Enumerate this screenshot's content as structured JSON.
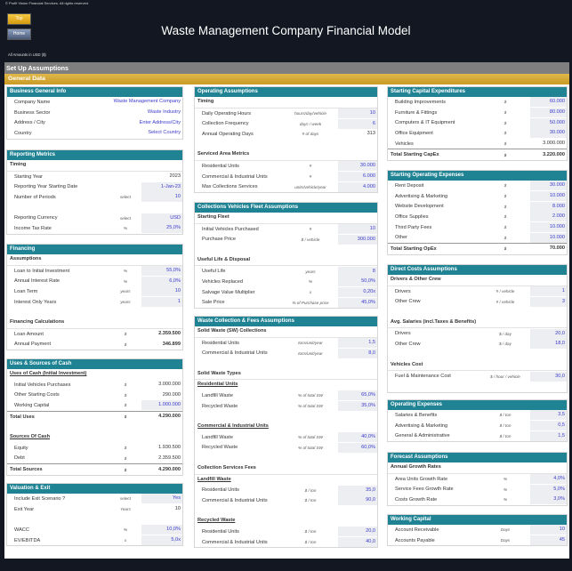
{
  "header": {
    "copyright": "© Profit Vision Financial Services. All rights reserved.",
    "top_button": "Top",
    "home_button": "Home",
    "title": "Waste Management Company Financial Model",
    "amounts": "All Amounts in  USD ($)",
    "section": "Set Up Assumptions",
    "subsection": "General Data"
  },
  "colors": {
    "header_teal": "#1f8394",
    "input_text": "#3a3acc",
    "section_gold": "#d4a83a",
    "section_grey": "#7f7f7f"
  },
  "panels": [
    {
      "col": 1,
      "pos": "p1a",
      "title": "Business General Info",
      "rows": [
        {
          "t": "row",
          "label": "Company Name",
          "unit": "",
          "value": "Waste Management Company",
          "input": false,
          "blue": true
        },
        {
          "t": "row",
          "label": "Business Sector",
          "unit": "",
          "value": "Waste Industry",
          "blue": true
        },
        {
          "t": "row",
          "label": "Address / City",
          "unit": "",
          "value": "Enter Address/City",
          "blue": true
        },
        {
          "t": "row",
          "label": "Country",
          "unit": "",
          "value": "Select Country",
          "blue": true
        }
      ]
    },
    {
      "col": 1,
      "pos": "p1b",
      "title": "Reporting Metrics",
      "rows": [
        {
          "t": "sub",
          "label": "Timing"
        },
        {
          "t": "row",
          "label": "Starting Year",
          "unit": "",
          "value": "2023"
        },
        {
          "t": "row",
          "label": "Reporting Year Starting Date",
          "unit": "",
          "value": "1-Jan-23",
          "input": true
        },
        {
          "t": "row",
          "label": "Number of Periods",
          "unit": "select",
          "value": "10",
          "input": true
        },
        {
          "t": "gap"
        },
        {
          "t": "row",
          "label": "Reporting Currency",
          "unit": "select",
          "value": "USD",
          "input": true
        },
        {
          "t": "row",
          "label": "Income Tax Rate",
          "unit": "%",
          "value": "25,0%",
          "input": true
        }
      ]
    },
    {
      "col": 1,
      "pos": "p1c",
      "title": "Financing",
      "rows": [
        {
          "t": "sub",
          "label": "Assumptions"
        },
        {
          "t": "row",
          "label": "Loan to Initial Investment",
          "unit": "%",
          "value": "55,0%",
          "input": true
        },
        {
          "t": "row",
          "label": "Annual Interest Rate",
          "unit": "%",
          "value": "6,0%",
          "input": true
        },
        {
          "t": "row",
          "label": "Loan Term",
          "unit": "years",
          "value": "10",
          "input": true
        },
        {
          "t": "row",
          "label": "Interest Only Years",
          "unit": "years",
          "value": "1",
          "input": true
        },
        {
          "t": "gap"
        },
        {
          "t": "sub",
          "label": "Financing Calculations"
        },
        {
          "t": "row",
          "label": "Loan Amount",
          "unit": "$",
          "value": "2.359.500",
          "bold": true
        },
        {
          "t": "row",
          "label": "Annual Payment",
          "unit": "$",
          "value": "346.899",
          "bold": true
        }
      ]
    },
    {
      "col": 1,
      "pos": "p1d",
      "title": "Uses & Sources of Cash",
      "rows": [
        {
          "t": "sub",
          "label": "Uses of Cash (Initial Investment)",
          "ul": true
        },
        {
          "t": "row",
          "label": "Initial Vehicles Purchases",
          "unit": "$",
          "value": "3.000.000"
        },
        {
          "t": "row",
          "label": "Other Starting Costs",
          "unit": "$",
          "value": "290.000"
        },
        {
          "t": "row",
          "label": "Working Capital",
          "unit": "$",
          "value": "1.000.000",
          "input": true
        },
        {
          "t": "total",
          "label": "Total Uses",
          "unit": "$",
          "value": "4.290.000"
        },
        {
          "t": "gap"
        },
        {
          "t": "sub",
          "label": "Sources Of Cash",
          "ul": true
        },
        {
          "t": "row",
          "label": "Equity",
          "unit": "$",
          "value": "1.930.500"
        },
        {
          "t": "row",
          "label": "Debt",
          "unit": "$",
          "value": "2.359.500"
        },
        {
          "t": "total",
          "label": "Total Sources",
          "unit": "$",
          "value": "4.290.000"
        }
      ]
    },
    {
      "col": 1,
      "pos": "p1e",
      "title": "Valuation & Exit",
      "rows": [
        {
          "t": "row",
          "label": "Include Exit Scenario ?",
          "unit": "select",
          "value": "Yes",
          "input": true
        },
        {
          "t": "row",
          "label": "Exit Year",
          "unit": "Years",
          "value": "10"
        },
        {
          "t": "gap"
        },
        {
          "t": "row",
          "label": "WACC",
          "unit": "%",
          "value": "10,0%",
          "input": true
        },
        {
          "t": "row",
          "label": "EV/EBITDA",
          "unit": "x",
          "value": "5,0x",
          "input": true
        }
      ]
    },
    {
      "col": 2,
      "pos": "p2a",
      "title": "Operating Assumptions",
      "rows": [
        {
          "t": "sub",
          "label": "Timing"
        },
        {
          "t": "row",
          "label": "Daily Operating Hours",
          "unit": "hours/day/vehicle",
          "value": "10",
          "input": true
        },
        {
          "t": "row",
          "label": "Collection Frequency",
          "unit": "days / week",
          "value": "6",
          "input": true
        },
        {
          "t": "row",
          "label": "Annual Operating Days",
          "unit": "# of days",
          "value": "313"
        },
        {
          "t": "gap"
        },
        {
          "t": "sub",
          "label": "Serviced Area Metrics"
        },
        {
          "t": "row",
          "label": "Residential Units",
          "unit": "#",
          "value": "30.000",
          "input": true
        },
        {
          "t": "row",
          "label": "Commercial & Industrial Units",
          "unit": "#",
          "value": "6.000",
          "input": true
        },
        {
          "t": "row",
          "label": "Max Collections Services",
          "unit": "units/vehicle/year",
          "value": "4.000",
          "input": true
        }
      ]
    },
    {
      "col": 2,
      "pos": "p2b",
      "title": "Collections Vehicles Fleet Assumptions",
      "rows": [
        {
          "t": "sub",
          "label": "Starting Fleet"
        },
        {
          "t": "row",
          "label": "Initial Vehicles Purchased",
          "unit": "#",
          "value": "10",
          "input": true
        },
        {
          "t": "row",
          "label": "Purchase Price",
          "unit": "$ / vehicle",
          "value": "300.000",
          "input": true
        },
        {
          "t": "gap"
        },
        {
          "t": "sub",
          "label": "Useful Life & Disposal"
        },
        {
          "t": "row",
          "label": "Useful Life",
          "unit": "years",
          "value": "8",
          "input": true
        },
        {
          "t": "row",
          "label": "Vehicles Replaced",
          "unit": "%",
          "value": "50,0%",
          "input": true
        },
        {
          "t": "row",
          "label": "Salvage Value Multiplier",
          "unit": "x",
          "value": "0,20x",
          "input": true
        },
        {
          "t": "row",
          "label": "Sale Price",
          "unit": "% of Purchase price",
          "value": "45,0%",
          "input": true
        }
      ]
    },
    {
      "col": 2,
      "pos": "p2c",
      "title": "Waste Collection & Fees Assumptions",
      "rows": [
        {
          "t": "sub",
          "label": "Solid Waste (SW) Collections"
        },
        {
          "t": "row",
          "label": "Residential Units",
          "unit": "tons/unit/year",
          "value": "1,5",
          "input": true
        },
        {
          "t": "row",
          "label": "Commercial & Industrial Units",
          "unit": "tons/unit/year",
          "value": "8,0",
          "input": true
        },
        {
          "t": "gap"
        },
        {
          "t": "sub",
          "label": "Solid Waste Types"
        },
        {
          "t": "sub",
          "label": "Residential Units",
          "ul": true
        },
        {
          "t": "row",
          "label": "Landfill Waste",
          "unit": "% of total SW",
          "value": "65,0%",
          "input": true
        },
        {
          "t": "row",
          "label": "Recycled Waste",
          "unit": "% of total SW",
          "value": "35,0%",
          "input": true
        },
        {
          "t": "gap"
        },
        {
          "t": "sub",
          "label": "Commercial & Industrial Units",
          "ul": true
        },
        {
          "t": "row",
          "label": "Landfill Waste",
          "unit": "% of total SW",
          "value": "40,0%",
          "input": true
        },
        {
          "t": "row",
          "label": "Recycled Waste",
          "unit": "% of total SW",
          "value": "60,0%",
          "input": true
        },
        {
          "t": "gap"
        },
        {
          "t": "sub",
          "label": "Collection Services Fees"
        },
        {
          "t": "sub",
          "label": "Landfill Waste",
          "ul": true
        },
        {
          "t": "row",
          "label": "Residential Units",
          "unit": "$ / ton",
          "value": "35,0",
          "input": true
        },
        {
          "t": "row",
          "label": "Commercial & Industrial Units",
          "unit": "$ / ton",
          "value": "90,0",
          "input": true
        },
        {
          "t": "gap"
        },
        {
          "t": "sub",
          "label": "Recycled Waste",
          "ul": true
        },
        {
          "t": "row",
          "label": "Residential Units",
          "unit": "$ / ton",
          "value": "20,0",
          "input": true
        },
        {
          "t": "row",
          "label": "Commercial & Industrial Units",
          "unit": "$ / ton",
          "value": "40,0",
          "input": true
        }
      ]
    },
    {
      "col": 3,
      "pos": "p3a",
      "title": "Starting Capital Expenditures",
      "rows": [
        {
          "t": "row",
          "label": "Building Improvements",
          "unit": "$",
          "value": "60.000",
          "input": true
        },
        {
          "t": "row",
          "label": "Furniture & Fittings",
          "unit": "$",
          "value": "80.000",
          "input": true
        },
        {
          "t": "row",
          "label": "Computers & IT Equipment",
          "unit": "$",
          "value": "50.000",
          "input": true
        },
        {
          "t": "row",
          "label": "Office Equipment",
          "unit": "$",
          "value": "30.000",
          "input": true
        },
        {
          "t": "row",
          "label": "Vehicles",
          "unit": "$",
          "value": "3.000.000"
        },
        {
          "t": "total",
          "label": "Total Starting CapEx",
          "unit": "$",
          "value": "3.220.000"
        }
      ]
    },
    {
      "col": 3,
      "pos": "p3b",
      "title": "Starting Operating Expenses",
      "rows": [
        {
          "t": "row",
          "label": "Rent Deposit",
          "unit": "$",
          "value": "30.000",
          "input": true
        },
        {
          "t": "row",
          "label": "Advertising & Marketing",
          "unit": "$",
          "value": "10.000",
          "input": true
        },
        {
          "t": "row",
          "label": "Website Development",
          "unit": "$",
          "value": "8.000",
          "input": true
        },
        {
          "t": "row",
          "label": "Office Supplies",
          "unit": "$",
          "value": "2.000",
          "input": true
        },
        {
          "t": "row",
          "label": "Third Party Fees",
          "unit": "$",
          "value": "10.000",
          "input": true
        },
        {
          "t": "row",
          "label": "Other",
          "unit": "$",
          "value": "10.000",
          "input": true
        },
        {
          "t": "total",
          "label": "Total Starting OpEx",
          "unit": "$",
          "value": "70.000"
        }
      ]
    },
    {
      "col": 3,
      "pos": "p3c",
      "title": "Direct Costs Assumptions",
      "rows": [
        {
          "t": "sub",
          "label": "Drivers & Other Crew"
        },
        {
          "t": "row",
          "label": "Drivers",
          "unit": "# / vehicle",
          "value": "1",
          "input": true
        },
        {
          "t": "row",
          "label": "Other Crew",
          "unit": "# / vehicle",
          "value": "3",
          "input": true
        },
        {
          "t": "gap"
        },
        {
          "t": "sub",
          "label": "Avg. Salaries (incl.Taxes & Benefits)"
        },
        {
          "t": "row",
          "label": "Drivers",
          "unit": "$ / day",
          "value": "20,0",
          "input": true
        },
        {
          "t": "row",
          "label": "Other Crew",
          "unit": "$ / day",
          "value": "18,0",
          "input": true
        },
        {
          "t": "gap"
        },
        {
          "t": "sub",
          "label": "Vehicles Cost"
        },
        {
          "t": "row",
          "label": "Fuel & Maintenance Cost",
          "unit": "$ / hour / vehicle",
          "value": "30,0",
          "input": true
        },
        {
          "t": "gap"
        }
      ]
    },
    {
      "col": 3,
      "pos": "p3d",
      "title": "Operating Expenses",
      "rows": [
        {
          "t": "row",
          "label": "Salaries & Benefits",
          "unit": "$ / ton",
          "value": "3,5",
          "input": true
        },
        {
          "t": "row",
          "label": "Advertising & Marketing",
          "unit": "$ / ton",
          "value": "0,5",
          "input": true
        },
        {
          "t": "row",
          "label": "General & Administrative",
          "unit": "$ / ton",
          "value": "1,5",
          "input": true
        }
      ]
    },
    {
      "col": 3,
      "pos": "p3e",
      "title": "Forecast Assumptions",
      "rows": [
        {
          "t": "sub",
          "label": "Annual Growth Rates"
        },
        {
          "t": "row",
          "label": "Area Units Growth Rate",
          "unit": "%",
          "value": "4,0%",
          "input": true
        },
        {
          "t": "row",
          "label": "Service Fees Growth Rate",
          "unit": "%",
          "value": "5,0%",
          "input": true
        },
        {
          "t": "row",
          "label": "Costs Growth Rate",
          "unit": "%",
          "value": "3,0%",
          "input": true
        }
      ]
    },
    {
      "col": 3,
      "pos": "p3f",
      "title": "Working Capital",
      "rows": [
        {
          "t": "row",
          "label": "Account Receivable",
          "unit": "Days",
          "value": "10",
          "input": true
        },
        {
          "t": "row",
          "label": "Accounts Payable",
          "unit": "Days",
          "value": "45",
          "input": true
        }
      ]
    }
  ]
}
